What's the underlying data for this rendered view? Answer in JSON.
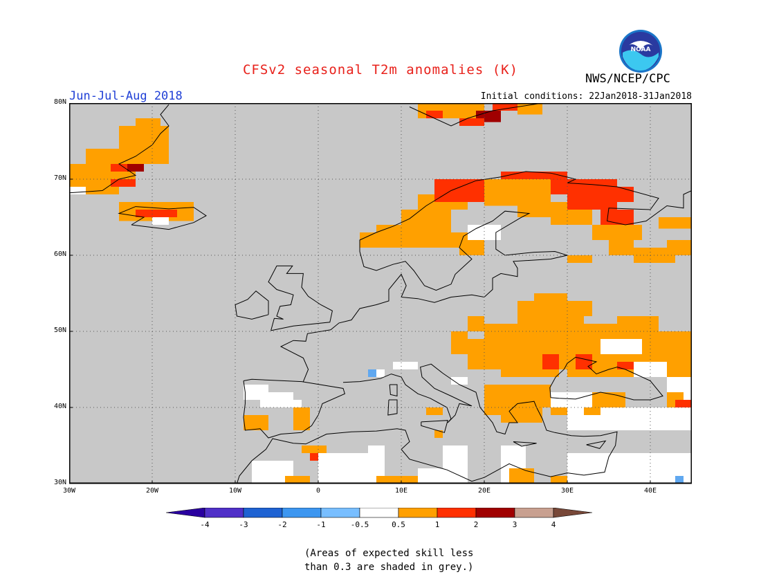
{
  "header": {
    "title": "CFSv2 seasonal T2m anomalies (K)",
    "period": "Jun-Jul-Aug 2018",
    "initial_conditions": "Initial conditions: 22Jan2018-31Jan2018",
    "agency": "NWS/NCEP/CPC",
    "logo_text": "NOAA"
  },
  "map": {
    "lon_labels": [
      "30W",
      "20W",
      "10W",
      "0",
      "10E",
      "20E",
      "30E",
      "40E"
    ],
    "lat_labels": [
      "80N",
      "70N",
      "60N",
      "50N",
      "40N",
      "30N"
    ],
    "lon_range": [
      -30,
      45
    ],
    "lat_range": [
      30,
      80
    ],
    "colors": {
      "masked_grey": "#c8c8c8",
      "anomaly_0_5_1": "#ffa000",
      "anomaly_1_2": "#ff3000",
      "anomaly_2_3": "#a00000",
      "near_zero": "#ffffff",
      "negative_0_5_1": "#60a8f0"
    }
  },
  "colorbar": {
    "tick_labels": [
      "-4",
      "-3",
      "-2",
      "-1",
      "-0.5",
      "0.5",
      "1",
      "2",
      "3",
      "4"
    ],
    "colors": [
      "#2a00a0",
      "#5030c8",
      "#1e62d2",
      "#3c96f0",
      "#78beff",
      "#ffffff",
      "#ffa000",
      "#ff3000",
      "#a00000",
      "#c8a090",
      "#784838"
    ]
  },
  "note": {
    "line1": "(Areas of expected skill less",
    "line2": "than 0.3 are shaded in grey.)"
  }
}
